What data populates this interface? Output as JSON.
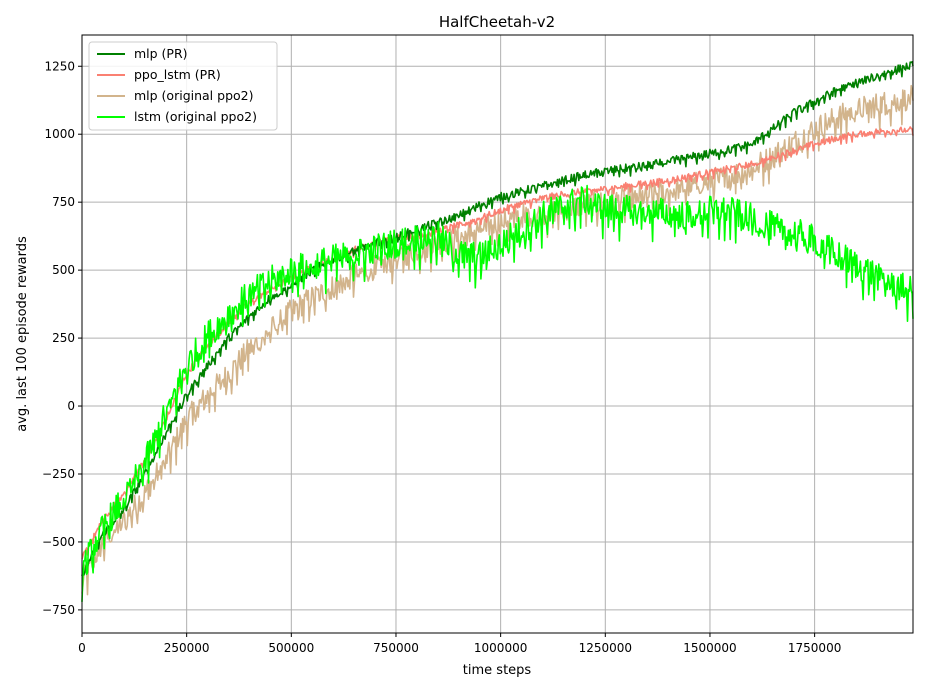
{
  "chart_data": {
    "type": "line",
    "title": "HalfCheetah-v2",
    "xlabel": "time steps",
    "ylabel": "avg. last 100 episode rewards",
    "xlim": [
      0,
      1985000
    ],
    "ylim": [
      -835,
      1365
    ],
    "grid": true,
    "legend_position": "top-left",
    "xticks": [
      0,
      250000,
      500000,
      750000,
      1000000,
      1250000,
      1500000,
      1750000
    ],
    "xtick_labels": [
      "0",
      "250000",
      "500000",
      "750000",
      "1000000",
      "1250000",
      "1500000",
      "1750000"
    ],
    "yticks": [
      -750,
      -500,
      -250,
      0,
      250,
      500,
      750,
      1000,
      1250
    ],
    "ytick_labels": [
      "−750",
      "−500",
      "−250",
      "0",
      "250",
      "500",
      "750",
      "1000",
      "1250"
    ],
    "series": [
      {
        "name": "mlp (PR)",
        "color": "#008000",
        "x": [
          0,
          50000,
          100000,
          150000,
          200000,
          250000,
          300000,
          350000,
          400000,
          450000,
          500000,
          550000,
          600000,
          650000,
          700000,
          750000,
          800000,
          850000,
          900000,
          950000,
          1000000,
          1050000,
          1100000,
          1150000,
          1200000,
          1250000,
          1300000,
          1350000,
          1400000,
          1450000,
          1500000,
          1550000,
          1600000,
          1650000,
          1700000,
          1750000,
          1800000,
          1850000,
          1900000,
          1950000,
          1985000
        ],
        "values": [
          -620,
          -470,
          -380,
          -250,
          -100,
          40,
          150,
          250,
          330,
          400,
          440,
          500,
          540,
          570,
          600,
          620,
          650,
          675,
          700,
          740,
          770,
          790,
          810,
          830,
          850,
          865,
          875,
          885,
          900,
          915,
          930,
          945,
          965,
          1020,
          1080,
          1120,
          1160,
          1190,
          1215,
          1240,
          1255
        ],
        "noise": 15
      },
      {
        "name": "ppo_lstm (PR)",
        "color": "#fa8072",
        "x": [
          0,
          50000,
          100000,
          150000,
          200000,
          250000,
          300000,
          350000,
          400000,
          450000,
          500000,
          550000,
          600000,
          650000,
          700000,
          750000,
          800000,
          850000,
          900000,
          950000,
          1000000,
          1050000,
          1100000,
          1150000,
          1200000,
          1250000,
          1300000,
          1350000,
          1400000,
          1450000,
          1500000,
          1550000,
          1600000,
          1650000,
          1700000,
          1750000,
          1800000,
          1850000,
          1900000,
          1950000,
          1985000
        ],
        "values": [
          -560,
          -420,
          -320,
          -200,
          -50,
          120,
          220,
          310,
          380,
          430,
          470,
          510,
          540,
          575,
          600,
          620,
          630,
          645,
          665,
          690,
          720,
          745,
          765,
          780,
          790,
          800,
          810,
          820,
          830,
          845,
          860,
          875,
          890,
          915,
          940,
          965,
          985,
          1000,
          1010,
          1015,
          1015
        ],
        "noise": 12
      },
      {
        "name": "mlp (original ppo2)",
        "color": "#d2b48c",
        "x": [
          0,
          50000,
          100000,
          150000,
          200000,
          250000,
          300000,
          350000,
          400000,
          450000,
          500000,
          550000,
          600000,
          650000,
          700000,
          750000,
          800000,
          850000,
          900000,
          950000,
          1000000,
          1050000,
          1100000,
          1150000,
          1200000,
          1250000,
          1300000,
          1350000,
          1400000,
          1450000,
          1500000,
          1550000,
          1600000,
          1650000,
          1700000,
          1750000,
          1800000,
          1850000,
          1900000,
          1950000,
          1985000
        ],
        "values": [
          -650,
          -500,
          -420,
          -320,
          -200,
          -50,
          40,
          120,
          210,
          280,
          350,
          400,
          440,
          480,
          510,
          545,
          575,
          600,
          620,
          650,
          680,
          700,
          710,
          725,
          740,
          750,
          760,
          775,
          790,
          810,
          830,
          850,
          875,
          920,
          970,
          1020,
          1060,
          1090,
          1110,
          1125,
          1135
        ],
        "noise": 45
      },
      {
        "name": "lstm (original ppo2)",
        "color": "#00ff00",
        "x": [
          0,
          50000,
          100000,
          150000,
          200000,
          250000,
          300000,
          350000,
          400000,
          450000,
          500000,
          550000,
          600000,
          650000,
          700000,
          750000,
          800000,
          850000,
          900000,
          950000,
          1000000,
          1050000,
          1100000,
          1150000,
          1200000,
          1250000,
          1300000,
          1350000,
          1400000,
          1450000,
          1500000,
          1550000,
          1600000,
          1650000,
          1700000,
          1750000,
          1800000,
          1850000,
          1900000,
          1950000,
          1985000
        ],
        "values": [
          -600,
          -450,
          -340,
          -210,
          -30,
          150,
          260,
          340,
          410,
          460,
          500,
          520,
          540,
          560,
          580,
          600,
          620,
          625,
          560,
          550,
          600,
          650,
          700,
          740,
          760,
          730,
          720,
          720,
          710,
          700,
          720,
          715,
          690,
          660,
          640,
          610,
          560,
          520,
          480,
          440,
          420
        ],
        "noise": 55
      }
    ]
  }
}
